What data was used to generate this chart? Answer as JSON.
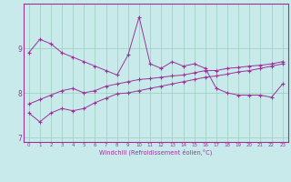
{
  "xlabel": "Windchill (Refroidissement éolien,°C)",
  "background_color": "#c8eaea",
  "grid_color": "#99ccbb",
  "line_color": "#993399",
  "x_values": [
    0,
    1,
    2,
    3,
    4,
    5,
    6,
    7,
    8,
    9,
    10,
    11,
    12,
    13,
    14,
    15,
    16,
    17,
    18,
    19,
    20,
    21,
    22,
    23
  ],
  "series1": [
    8.9,
    9.2,
    9.1,
    8.9,
    8.8,
    8.7,
    8.6,
    8.5,
    8.4,
    8.85,
    9.7,
    8.65,
    8.55,
    8.7,
    8.6,
    8.65,
    8.55,
    8.1,
    8.0,
    7.95,
    7.95,
    7.95,
    7.9,
    8.2
  ],
  "series2": [
    7.75,
    7.85,
    7.95,
    8.05,
    8.1,
    8.0,
    8.05,
    8.15,
    8.2,
    8.25,
    8.3,
    8.32,
    8.35,
    8.38,
    8.4,
    8.45,
    8.5,
    8.5,
    8.55,
    8.57,
    8.6,
    8.62,
    8.65,
    8.7
  ],
  "series3": [
    7.55,
    7.35,
    7.55,
    7.65,
    7.6,
    7.65,
    7.78,
    7.88,
    7.98,
    8.0,
    8.05,
    8.1,
    8.15,
    8.2,
    8.25,
    8.3,
    8.35,
    8.38,
    8.42,
    8.47,
    8.5,
    8.55,
    8.6,
    8.65
  ],
  "ylim": [
    6.9,
    10.0
  ],
  "xlim": [
    -0.5,
    23.5
  ],
  "yticks": [
    7,
    8,
    9
  ],
  "xticks": [
    0,
    1,
    2,
    3,
    4,
    5,
    6,
    7,
    8,
    9,
    10,
    11,
    12,
    13,
    14,
    15,
    16,
    17,
    18,
    19,
    20,
    21,
    22,
    23
  ]
}
